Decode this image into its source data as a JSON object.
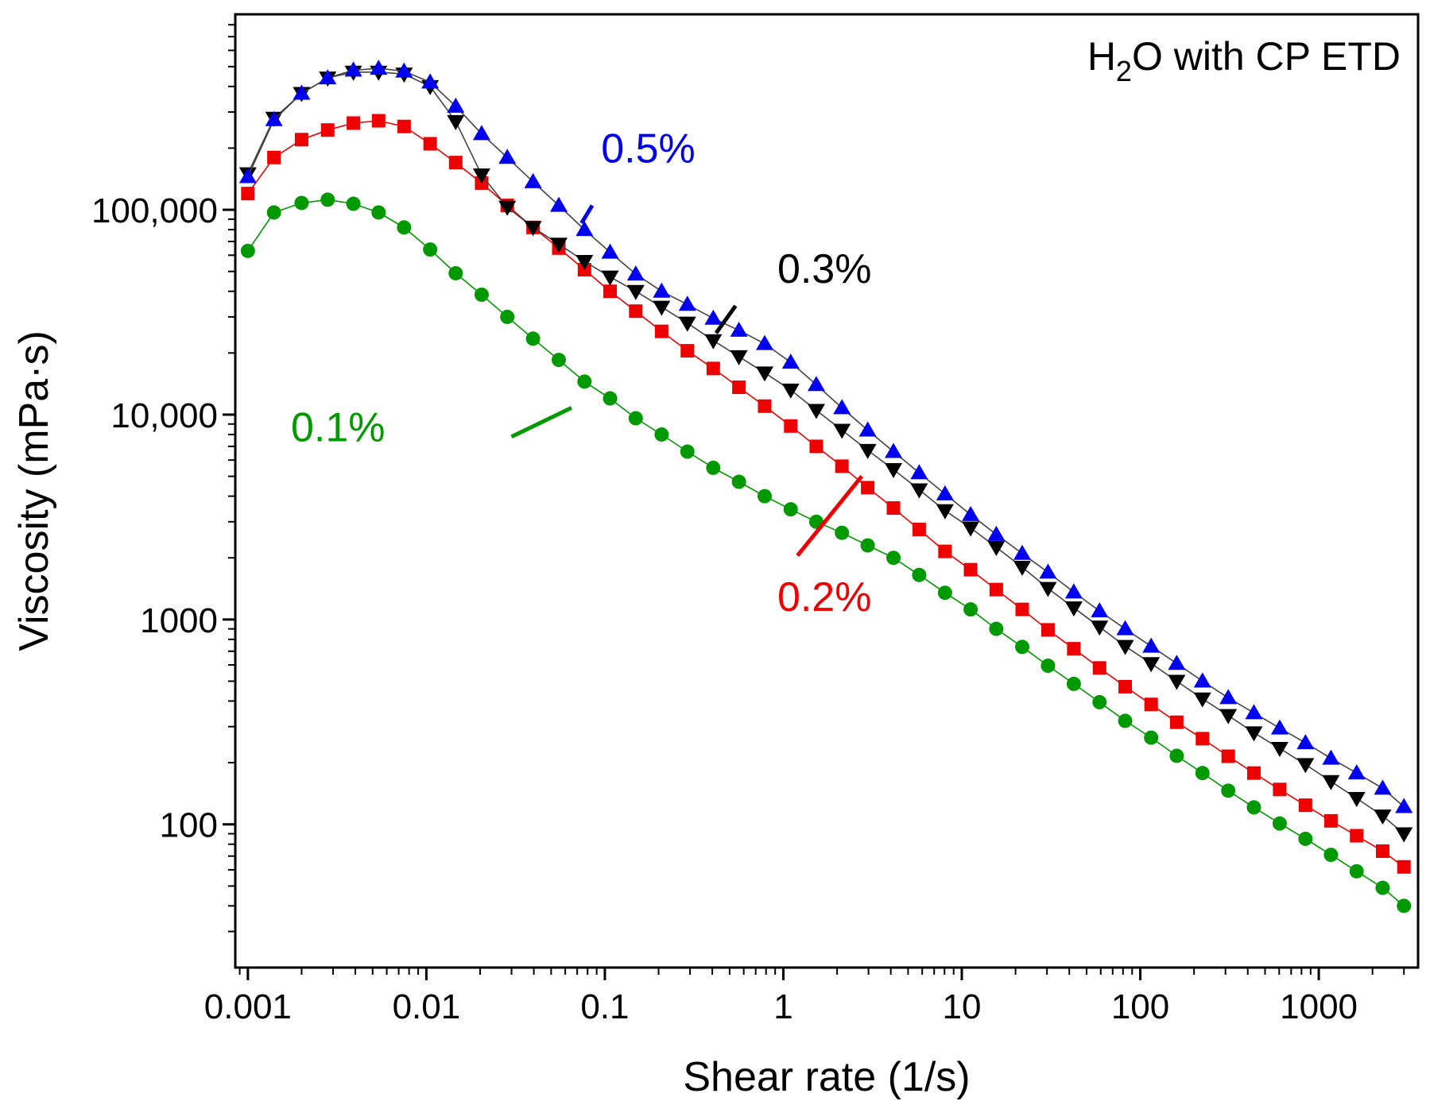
{
  "chart_data": {
    "type": "line",
    "title": "H2O with CP ETD",
    "title_parts": {
      "prefix": "H",
      "subscript": "2",
      "suffix": "O with CP ETD"
    },
    "xlabel": "Shear rate (1/s)",
    "ylabel": "Viscosity (mPa·s)",
    "xscale": "log",
    "yscale": "log",
    "xlim": [
      0.00085,
      3600
    ],
    "ylim": [
      20,
      900000
    ],
    "x_ticks": [
      0.001,
      0.01,
      0.1,
      1,
      10,
      100,
      1000
    ],
    "x_tick_labels": [
      "0.001",
      "0.01",
      "0.1",
      "1",
      "10",
      "100",
      "1000"
    ],
    "y_ticks": [
      100,
      1000,
      10000,
      100000
    ],
    "y_tick_labels": [
      "100",
      "1000",
      "10,000",
      "100,000"
    ],
    "grid": false,
    "x": [
      0.001,
      0.0014,
      0.002,
      0.0028,
      0.0039,
      0.0054,
      0.0075,
      0.0105,
      0.0146,
      0.0204,
      0.0284,
      0.0396,
      0.0552,
      0.0769,
      0.107,
      0.149,
      0.208,
      0.29,
      0.405,
      0.564,
      0.786,
      1.1,
      1.53,
      2.13,
      2.97,
      4.14,
      5.77,
      8.05,
      11.2,
      15.6,
      21.8,
      30.4,
      42.4,
      59.1,
      82.3,
      115,
      160,
      223,
      311,
      433,
      604,
      842,
      1170,
      1630,
      2280,
      3000
    ],
    "series": [
      {
        "name": "0.5%",
        "color": "#0000ee",
        "marker": "triangle-up",
        "values": [
          145000,
          275000,
          370000,
          440000,
          480000,
          490000,
          475000,
          420000,
          320000,
          235000,
          180000,
          137000,
          105000,
          80000,
          62000,
          48500,
          40000,
          34500,
          29500,
          25800,
          22200,
          18000,
          14000,
          10800,
          8400,
          6600,
          5200,
          4100,
          3250,
          2600,
          2100,
          1700,
          1360,
          1100,
          900,
          740,
          610,
          500,
          415,
          350,
          295,
          250,
          210,
          178,
          150,
          122
        ]
      },
      {
        "name": "0.3%",
        "color": "#000000",
        "marker": "triangle-down",
        "values": [
          150000,
          280000,
          370000,
          440000,
          470000,
          470000,
          460000,
          400000,
          270000,
          148000,
          103000,
          82000,
          68000,
          56000,
          47000,
          40000,
          33500,
          28000,
          23000,
          19200,
          16000,
          13200,
          10500,
          8400,
          6700,
          5400,
          4300,
          3400,
          2800,
          2250,
          1800,
          1420,
          1140,
          920,
          740,
          610,
          500,
          410,
          340,
          280,
          235,
          196,
          162,
          134,
          110,
          90
        ]
      },
      {
        "name": "0.2%",
        "color": "#ee0000",
        "marker": "square",
        "values": [
          120000,
          180000,
          220000,
          245000,
          265000,
          272000,
          255000,
          210000,
          170000,
          135000,
          105000,
          82000,
          65000,
          51000,
          40000,
          32000,
          25500,
          20500,
          16800,
          13600,
          11000,
          8800,
          7000,
          5600,
          4400,
          3500,
          2750,
          2150,
          1750,
          1400,
          1120,
          890,
          720,
          580,
          470,
          385,
          315,
          262,
          215,
          178,
          148,
          124,
          104,
          88,
          74,
          62
        ]
      },
      {
        "name": "0.1%",
        "color": "#009900",
        "marker": "circle",
        "values": [
          63000,
          97000,
          108000,
          112000,
          107000,
          97000,
          82000,
          64000,
          49000,
          38500,
          30000,
          23500,
          18500,
          14500,
          12000,
          9600,
          8000,
          6600,
          5500,
          4700,
          4000,
          3450,
          3000,
          2650,
          2300,
          2000,
          1650,
          1350,
          1120,
          900,
          735,
          595,
          485,
          395,
          320,
          265,
          216,
          178,
          146,
          121,
          101,
          85,
          71,
          59,
          49,
          40
        ]
      }
    ],
    "annotations": [
      {
        "text": "0.5%",
        "color": "#0000ee",
        "x": 0.175,
        "y": 170000,
        "pointer_from": [
          0.085,
          105000
        ],
        "pointer_to": [
          0.074,
          86000
        ]
      },
      {
        "text": "0.3%",
        "color": "#000000",
        "x": 1.7,
        "y": 44000,
        "pointer_from": [
          0.54,
          34000
        ],
        "pointer_to": [
          0.42,
          25000
        ]
      },
      {
        "text": "0.2%",
        "color": "#ee0000",
        "x": 1.7,
        "y": 1100,
        "pointer_from": [
          1.2,
          2050
        ],
        "pointer_to": [
          2.75,
          5000
        ]
      },
      {
        "text": "0.1%",
        "color": "#009900",
        "x": 0.0032,
        "y": 7400,
        "pointer_from": [
          0.03,
          7800
        ],
        "pointer_to": [
          0.065,
          10800
        ]
      }
    ]
  }
}
